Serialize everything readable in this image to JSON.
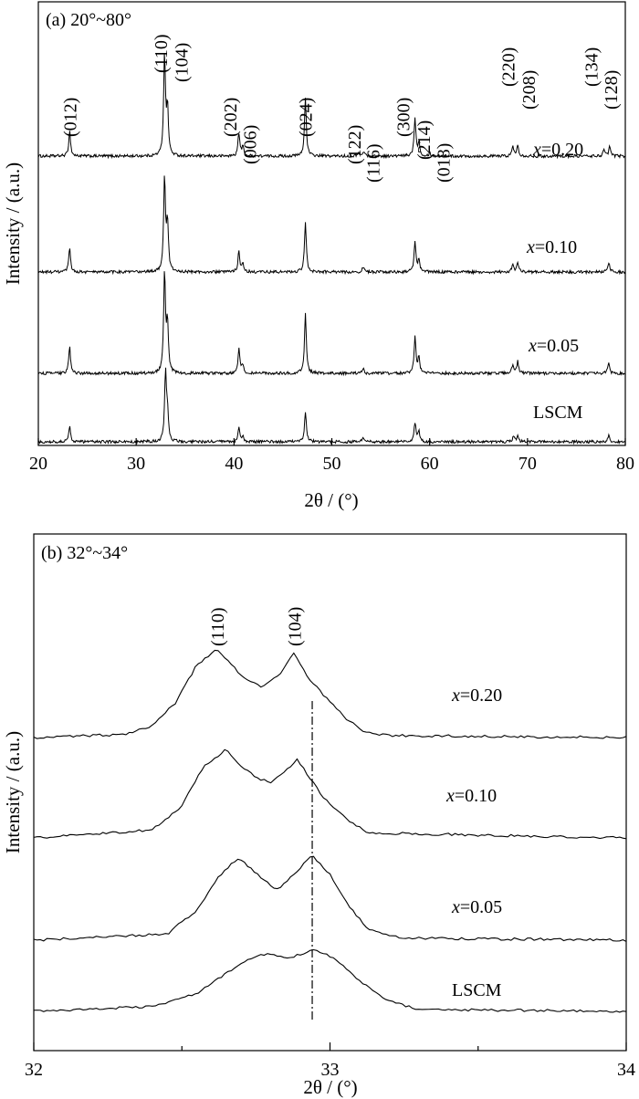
{
  "chart_data": [
    {
      "type": "line",
      "panel_label": "(a) 20°~80°",
      "xlabel": "2θ / (°)",
      "ylabel": "Intensity / (a.u.)",
      "xlim": [
        20,
        80
      ],
      "x_ticks": [
        20,
        30,
        40,
        50,
        60,
        70,
        80
      ],
      "y_ticks_numbered": false,
      "grid": false,
      "series": [
        {
          "name": "x=0.20",
          "baseline": 3,
          "peaks": [
            [
              23.2,
              0.26
            ],
            [
              32.9,
              1.05
            ],
            [
              33.2,
              0.48
            ],
            [
              40.5,
              0.24
            ],
            [
              40.9,
              0.1
            ],
            [
              47.3,
              0.6
            ],
            [
              52.7,
              0.04
            ],
            [
              53.3,
              0.05
            ],
            [
              58.5,
              0.4
            ],
            [
              58.9,
              0.14
            ],
            [
              60.0,
              0.03
            ],
            [
              68.5,
              0.1
            ],
            [
              69.0,
              0.12
            ],
            [
              77.8,
              0.06
            ],
            [
              78.4,
              0.1
            ]
          ]
        },
        {
          "name": "x=0.10",
          "baseline": 2,
          "peaks": [
            [
              23.2,
              0.24
            ],
            [
              32.9,
              0.98
            ],
            [
              33.2,
              0.5
            ],
            [
              40.5,
              0.22
            ],
            [
              40.9,
              0.09
            ],
            [
              47.3,
              0.52
            ],
            [
              53.2,
              0.05
            ],
            [
              58.5,
              0.32
            ],
            [
              58.9,
              0.13
            ],
            [
              68.5,
              0.09
            ],
            [
              69.0,
              0.1
            ],
            [
              78.3,
              0.1
            ]
          ]
        },
        {
          "name": "x=0.05",
          "baseline": 1,
          "peaks": [
            [
              23.2,
              0.27
            ],
            [
              32.9,
              1.05
            ],
            [
              33.2,
              0.5
            ],
            [
              40.5,
              0.25
            ],
            [
              40.9,
              0.09
            ],
            [
              47.3,
              0.62
            ],
            [
              53.2,
              0.05
            ],
            [
              58.5,
              0.38
            ],
            [
              58.9,
              0.16
            ],
            [
              68.5,
              0.1
            ],
            [
              69.0,
              0.12
            ],
            [
              78.3,
              0.1
            ]
          ]
        },
        {
          "name": "LSCM",
          "baseline": 0,
          "peaks": [
            [
              23.2,
              0.16
            ],
            [
              33.0,
              0.72
            ],
            [
              33.2,
              0.28
            ],
            [
              40.5,
              0.14
            ],
            [
              40.9,
              0.05
            ],
            [
              47.3,
              0.32
            ],
            [
              53.2,
              0.04
            ],
            [
              58.5,
              0.2
            ],
            [
              58.9,
              0.1
            ],
            [
              68.6,
              0.06
            ],
            [
              69.0,
              0.06
            ],
            [
              78.3,
              0.07
            ]
          ]
        }
      ],
      "peak_labels": [
        {
          "text": "(012)",
          "x": 23.2
        },
        {
          "text": "(110)",
          "x": 32.5
        },
        {
          "text": "(104)",
          "x": 34.6
        },
        {
          "text": "(202)",
          "x": 39.6
        },
        {
          "text": "(006)",
          "x": 41.6
        },
        {
          "text": "(024)",
          "x": 47.3
        },
        {
          "text": "(122)",
          "x": 52.3
        },
        {
          "text": "(116)",
          "x": 54.2
        },
        {
          "text": "(300)",
          "x": 57.3
        },
        {
          "text": "(214)",
          "x": 59.4
        },
        {
          "text": "(018)",
          "x": 61.4
        },
        {
          "text": "(220)",
          "x": 68.0
        },
        {
          "text": "(208)",
          "x": 70.1
        },
        {
          "text": "(134)",
          "x": 76.5
        },
        {
          "text": "(128)",
          "x": 78.5
        }
      ]
    },
    {
      "type": "line",
      "panel_label": "(b) 32°~34°",
      "xlabel": "2θ / (°)",
      "ylabel": "Intensity / (a.u.)",
      "xlim": [
        32,
        34
      ],
      "x_ticks": [
        32,
        33,
        34
      ],
      "x_minor_ticks": [
        32.5,
        33.5
      ],
      "y_ticks_numbered": false,
      "grid": false,
      "reference_line_x": 32.94,
      "series": [
        {
          "name": "x=0.20",
          "baseline": 3,
          "points": [
            [
              32.0,
              0.0
            ],
            [
              32.3,
              0.03
            ],
            [
              32.4,
              0.12
            ],
            [
              32.48,
              0.35
            ],
            [
              32.55,
              0.72
            ],
            [
              32.62,
              0.88
            ],
            [
              32.7,
              0.62
            ],
            [
              32.77,
              0.5
            ],
            [
              32.83,
              0.62
            ],
            [
              32.88,
              0.85
            ],
            [
              32.92,
              0.62
            ],
            [
              32.98,
              0.42
            ],
            [
              33.05,
              0.2
            ],
            [
              33.12,
              0.05
            ],
            [
              33.2,
              0.02
            ],
            [
              34.0,
              0.0
            ]
          ]
        },
        {
          "name": "x=0.10",
          "baseline": 2,
          "points": [
            [
              32.0,
              0.0
            ],
            [
              32.4,
              0.08
            ],
            [
              32.5,
              0.32
            ],
            [
              32.57,
              0.7
            ],
            [
              32.65,
              0.88
            ],
            [
              32.7,
              0.72
            ],
            [
              32.75,
              0.6
            ],
            [
              32.8,
              0.55
            ],
            [
              32.83,
              0.62
            ],
            [
              32.89,
              0.78
            ],
            [
              32.93,
              0.6
            ],
            [
              32.98,
              0.4
            ],
            [
              33.05,
              0.2
            ],
            [
              33.13,
              0.05
            ],
            [
              34.0,
              0.0
            ]
          ]
        },
        {
          "name": "x=0.05",
          "baseline": 1,
          "points": [
            [
              32.0,
              0.0
            ],
            [
              32.45,
              0.06
            ],
            [
              32.55,
              0.3
            ],
            [
              32.62,
              0.62
            ],
            [
              32.69,
              0.82
            ],
            [
              32.75,
              0.67
            ],
            [
              32.82,
              0.5
            ],
            [
              32.86,
              0.6
            ],
            [
              32.94,
              0.85
            ],
            [
              33.0,
              0.65
            ],
            [
              33.06,
              0.35
            ],
            [
              33.13,
              0.1
            ],
            [
              33.25,
              0.02
            ],
            [
              34.0,
              0.0
            ]
          ]
        },
        {
          "name": "LSCM",
          "baseline": 0,
          "points": [
            [
              32.0,
              0.0
            ],
            [
              32.4,
              0.05
            ],
            [
              32.55,
              0.18
            ],
            [
              32.65,
              0.38
            ],
            [
              32.72,
              0.52
            ],
            [
              32.8,
              0.58
            ],
            [
              32.86,
              0.52
            ],
            [
              32.94,
              0.62
            ],
            [
              33.02,
              0.52
            ],
            [
              33.1,
              0.3
            ],
            [
              33.2,
              0.1
            ],
            [
              33.3,
              0.02
            ],
            [
              34.0,
              0.0
            ]
          ]
        }
      ],
      "peak_labels": [
        {
          "text": "(110)",
          "x": 32.62
        },
        {
          "text": "(104)",
          "x": 32.88
        }
      ]
    }
  ]
}
